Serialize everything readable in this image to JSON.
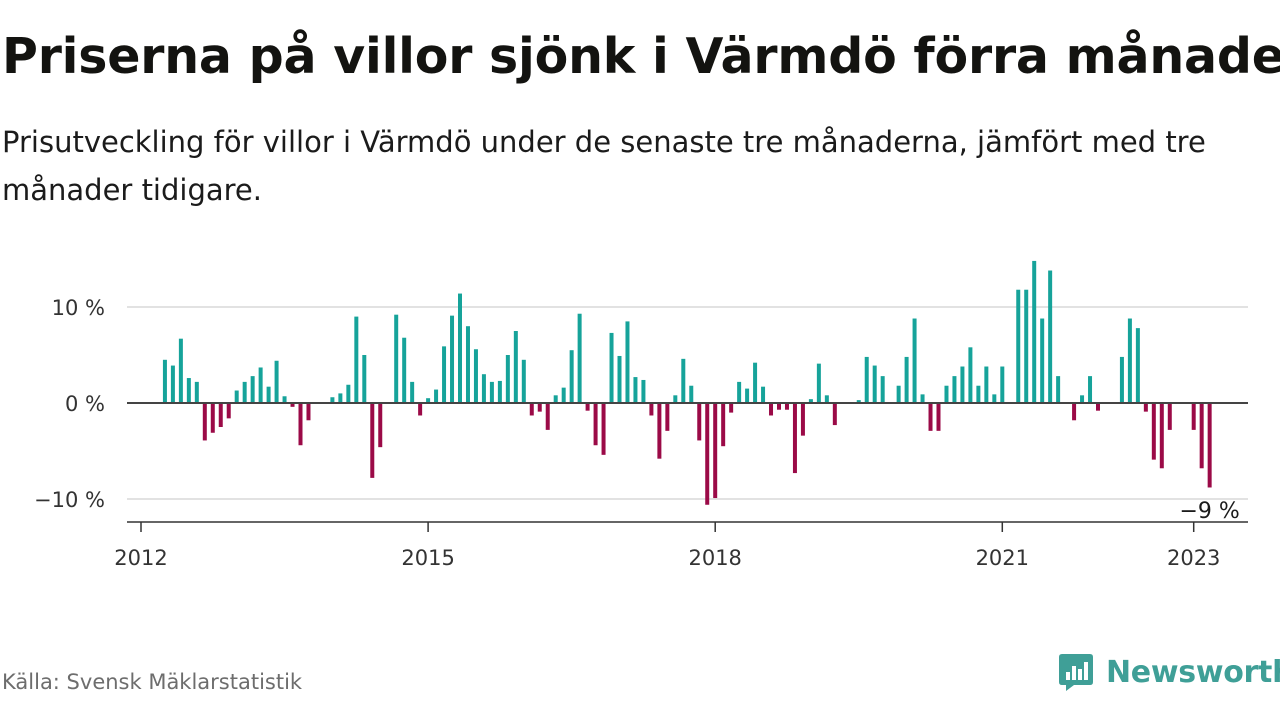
{
  "title": "Priserna på villor sjönk i Värmdö förra månaden",
  "subtitle": "Prisutveckling för villor i Värmdö under de senaste tre månaderna, jämfört med tre månader tidigare.",
  "source": "Källa: Svensk Mäklarstatistik",
  "brand": "Newsworthy",
  "colors": {
    "positive": "#16a39a",
    "negative": "#9b0a47",
    "zero_line": "#444444",
    "grid": "#d8d8d8",
    "brand": "#3f9f97"
  },
  "chart_data": {
    "type": "bar",
    "ylim": [
      -12.5,
      14.5
    ],
    "yticks": [
      {
        "value": 10,
        "label": "10 %"
      },
      {
        "value": 0,
        "label": "0 %"
      },
      {
        "value": -10,
        "label": "−10 %"
      }
    ],
    "xticks": [
      {
        "value": 2012.0,
        "label": "2012"
      },
      {
        "value": 2015.0,
        "label": "2015"
      },
      {
        "value": 2018.0,
        "label": "2018"
      },
      {
        "value": 2021.0,
        "label": "2021"
      },
      {
        "value": 2023.0,
        "label": "2023"
      }
    ],
    "start_year": 2012,
    "start_month": 4,
    "values": [
      4.5,
      3.9,
      6.7,
      2.6,
      2.2,
      -3.9,
      -3.1,
      -2.5,
      -1.6,
      1.3,
      2.2,
      2.8,
      3.7,
      1.7,
      4.4,
      0.7,
      -0.4,
      -4.4,
      -1.8,
      0,
      0,
      0.6,
      1.0,
      1.9,
      9.0,
      5.0,
      -7.8,
      -4.6,
      0,
      9.2,
      6.8,
      2.2,
      -1.3,
      0.5,
      1.4,
      5.9,
      9.1,
      11.4,
      8.0,
      5.6,
      3.0,
      2.2,
      2.3,
      5.0,
      7.5,
      4.5,
      -1.3,
      -0.9,
      -2.8,
      0.8,
      1.6,
      5.5,
      9.3,
      -0.8,
      -4.4,
      -5.4,
      7.3,
      4.9,
      8.5,
      2.7,
      2.4,
      -1.3,
      -5.8,
      -2.9,
      0.8,
      4.6,
      1.8,
      -3.9,
      -10.6,
      -9.9,
      -4.5,
      -1.0,
      2.2,
      1.5,
      4.2,
      1.7,
      -1.3,
      -0.7,
      -0.7,
      -7.3,
      -3.4,
      0.4,
      4.1,
      0.8,
      -2.3,
      0,
      0,
      0.3,
      4.8,
      3.9,
      2.8,
      0,
      1.8,
      4.8,
      8.8,
      0.9,
      -2.9,
      -2.9,
      1.8,
      2.8,
      3.8,
      5.8,
      1.8,
      3.8,
      0.9,
      3.8,
      0,
      11.8,
      11.8,
      14.8,
      8.8,
      13.8,
      2.8,
      0,
      -1.8,
      0.8,
      2.8,
      -0.8,
      0,
      0,
      4.8,
      8.8,
      7.8,
      -0.9,
      -5.9,
      -6.8,
      -2.8,
      0,
      0,
      -2.8,
      -6.8,
      -8.8
    ],
    "last_label": "−9 %"
  }
}
